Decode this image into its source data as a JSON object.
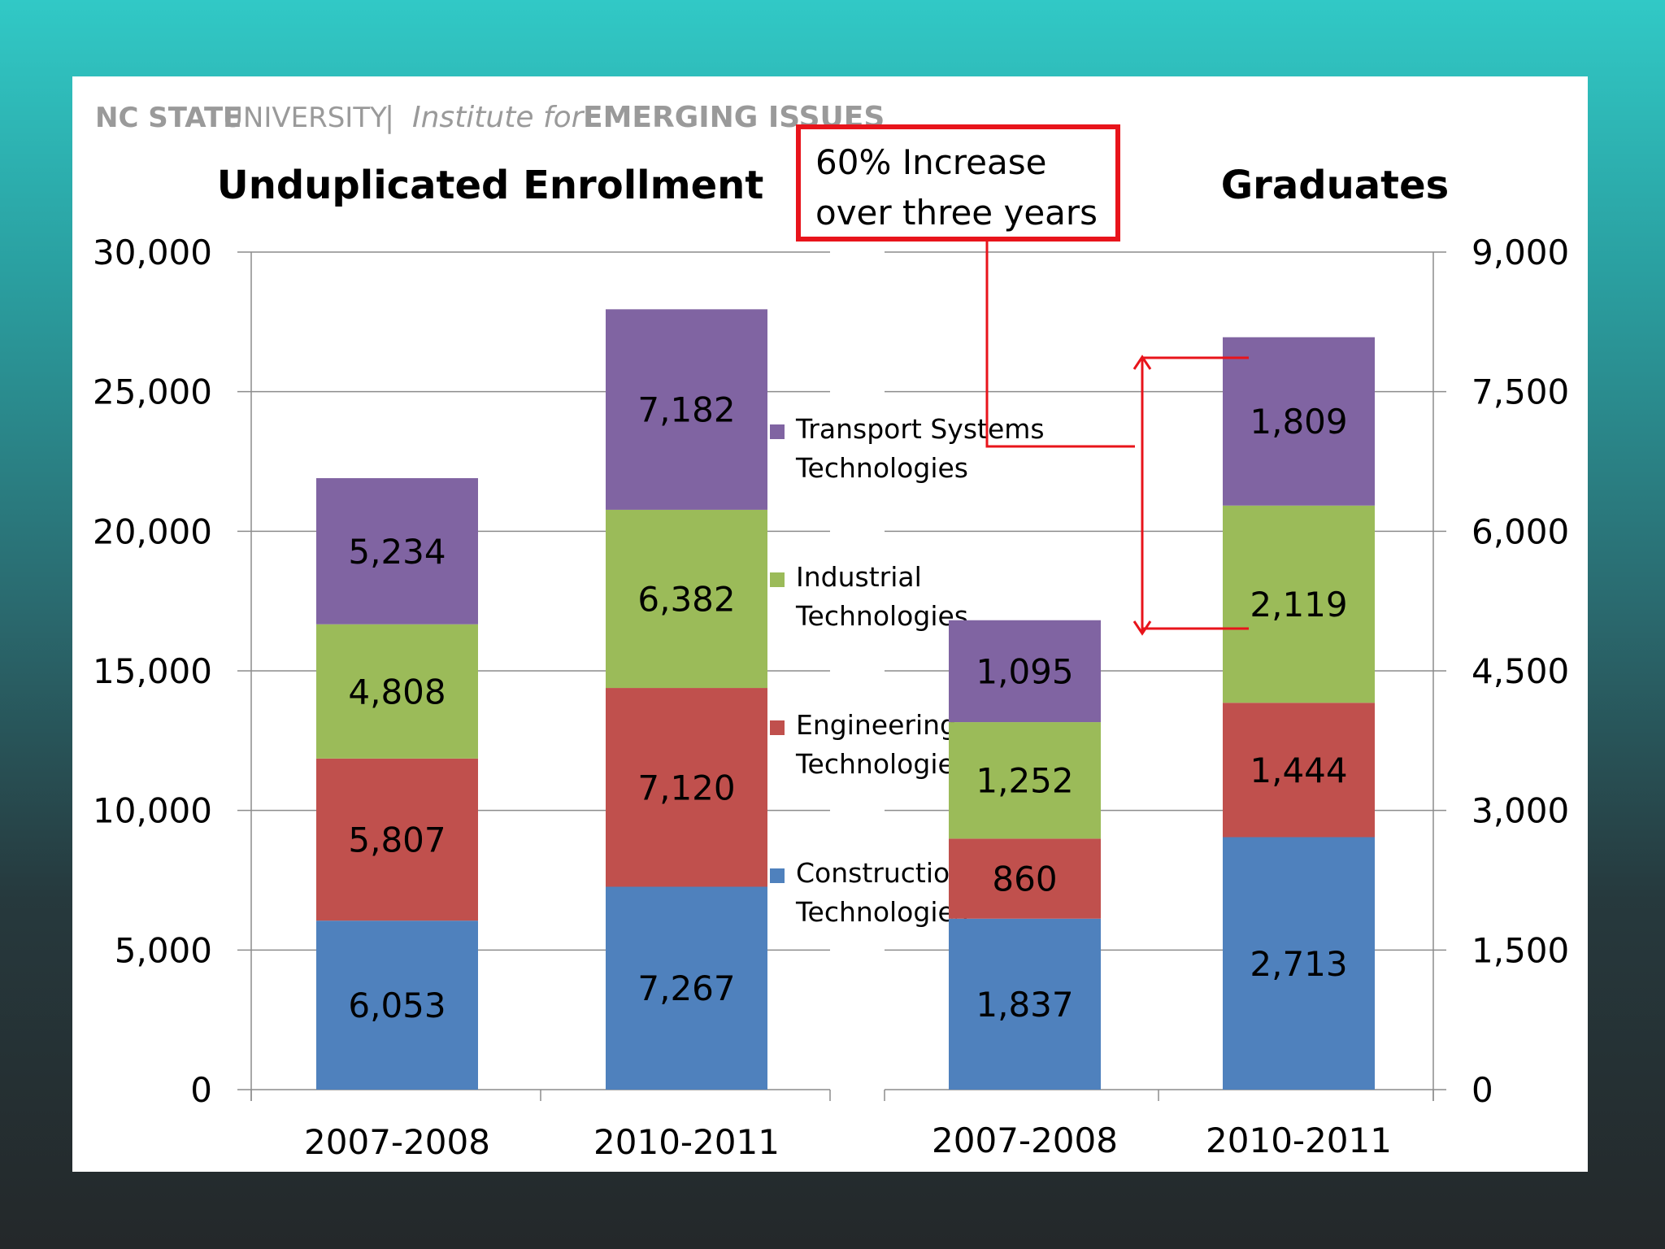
{
  "header": {
    "brand_primary": "NC STATE",
    "brand_secondary": "UNIVERSITY",
    "separator": "|",
    "institute_prefix": "Institute for",
    "institute_name": "EMERGING ISSUES"
  },
  "annotation": {
    "line1": "60% Increase",
    "line2": "over three years",
    "box_color": "#e8141b"
  },
  "legend": [
    {
      "key": "transport",
      "line1": "Transport Systems",
      "line2": "Technologies"
    },
    {
      "key": "industrial",
      "line1": "Industrial",
      "line2": "Technologies"
    },
    {
      "key": "engineering",
      "line1": "Engineering",
      "line2": "Technologies"
    },
    {
      "key": "construction",
      "line1": "Construction",
      "line2": "Technologies"
    }
  ],
  "chart_data": [
    {
      "type": "bar",
      "stacked": true,
      "title": "Unduplicated Enrollment",
      "categories": [
        "2007-2008",
        "2010-2011"
      ],
      "ylim": [
        0,
        30000
      ],
      "y_ticks": [
        0,
        5000,
        10000,
        15000,
        20000,
        25000,
        30000
      ],
      "y_tick_labels": [
        "0",
        "5,000",
        "10,000",
        "15,000",
        "20,000",
        "25,000",
        "30,000"
      ],
      "axis_side": "left",
      "grid": true,
      "series": [
        {
          "name": "Construction Technologies",
          "color": "#4f81bd",
          "values": [
            6053,
            7267
          ],
          "labels": [
            "6,053",
            "7,267"
          ]
        },
        {
          "name": "Engineering Technologies",
          "color": "#c0504d",
          "values": [
            5807,
            7120
          ],
          "labels": [
            "5,807",
            "7,120"
          ]
        },
        {
          "name": "Industrial Technologies",
          "color": "#9bbb59",
          "values": [
            4808,
            6382
          ],
          "labels": [
            "4,808",
            "6,382"
          ]
        },
        {
          "name": "Transport Systems Technologies",
          "color": "#8064a2",
          "values": [
            5234,
            7182
          ],
          "labels": [
            "5,234",
            "7,182"
          ]
        }
      ]
    },
    {
      "type": "bar",
      "stacked": true,
      "title": "Graduates",
      "categories": [
        "2007-2008",
        "2010-2011"
      ],
      "ylim": [
        0,
        9000
      ],
      "y_ticks": [
        0,
        1500,
        3000,
        4500,
        6000,
        7500,
        9000
      ],
      "y_tick_labels": [
        "0",
        "1,500",
        "3,000",
        "4,500",
        "6,000",
        "7,500",
        "9,000"
      ],
      "axis_side": "right",
      "grid": true,
      "series": [
        {
          "name": "Construction Technologies",
          "color": "#4f81bd",
          "values": [
            1837,
            2713
          ],
          "labels": [
            "1,837",
            "2,713"
          ]
        },
        {
          "name": "Engineering Technologies",
          "color": "#c0504d",
          "values": [
            860,
            1444
          ],
          "labels": [
            "860",
            "1,444"
          ]
        },
        {
          "name": "Industrial Technologies",
          "color": "#9bbb59",
          "values": [
            1252,
            2119
          ],
          "labels": [
            "1,252",
            "2,119"
          ]
        },
        {
          "name": "Transport Systems Technologies",
          "color": "#8064a2",
          "values": [
            1095,
            1809
          ],
          "labels": [
            "1,095",
            "1,809"
          ]
        }
      ]
    }
  ]
}
